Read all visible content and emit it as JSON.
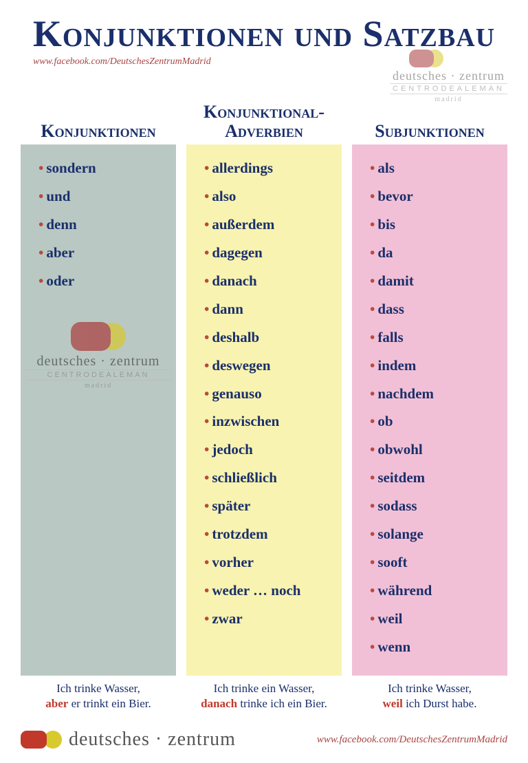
{
  "title": "Konjunktionen und Satzbau",
  "url": "www.facebook.com/DeutschesZentrumMadrid",
  "logo": {
    "line1": "deutsches · zentrum",
    "line2": "CENTRODEALEMAN",
    "line3": "madrid"
  },
  "columns": {
    "c1": {
      "header": "Konjunktionen",
      "bg": "#b9c8c3",
      "items": [
        "sondern",
        "und",
        "denn",
        "aber",
        "oder"
      ],
      "example": {
        "pre": "Ich trinke Wasser,",
        "hl": "aber",
        "post": " er trinkt ein Bier."
      }
    },
    "c2": {
      "header": "Konjunktional-\nAdverbien",
      "bg": "#f8f3b0",
      "items": [
        "allerdings",
        "also",
        "außerdem",
        "dagegen",
        "danach",
        "dann",
        "deshalb",
        "deswegen",
        "genauso",
        "inzwischen",
        "jedoch",
        "schließlich",
        "später",
        "trotzdem",
        "vorher",
        "weder … noch",
        "zwar"
      ],
      "example": {
        "pre": "Ich trinke ein Wasser,",
        "hl": "danach",
        "post": " trinke ich ein Bier."
      }
    },
    "c3": {
      "header": "Subjunktionen",
      "bg": "#f2c0d6",
      "items": [
        "als",
        "bevor",
        "bis",
        "da",
        "damit",
        "dass",
        "falls",
        "indem",
        "nachdem",
        "ob",
        "obwohl",
        "seitdem",
        "sodass",
        "solange",
        "sooft",
        "während",
        "weil",
        "wenn"
      ],
      "example": {
        "pre": "Ich trinke Wasser,",
        "hl": "weil",
        "post": " ich Durst habe."
      }
    }
  },
  "colors": {
    "text_dark": "#1a2f6b",
    "bullet": "#b94a3e",
    "highlight": "#c0392b",
    "url": "#a94442"
  }
}
